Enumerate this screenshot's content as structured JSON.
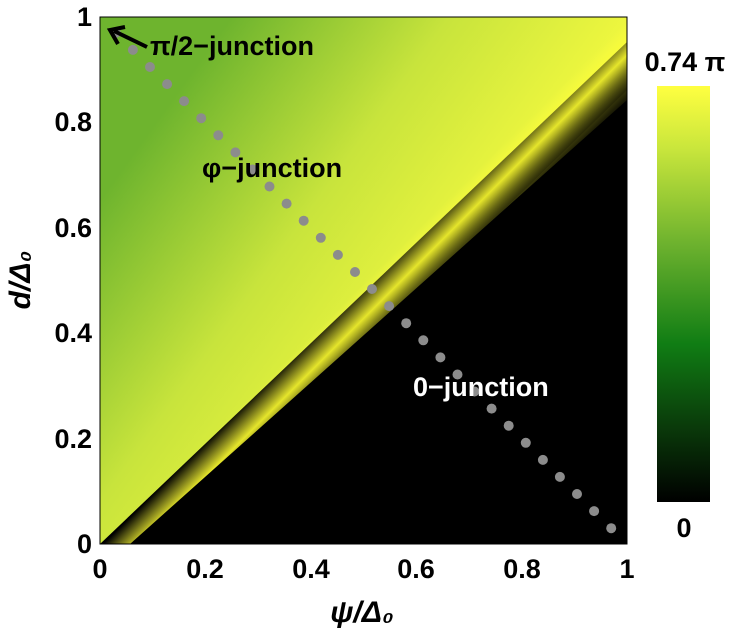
{
  "chart_data": {
    "type": "heatmap",
    "x": {
      "min": 0,
      "max": 1,
      "ticks": [
        "0",
        "0.2",
        "0.4",
        "0.6",
        "0.8",
        "1"
      ]
    },
    "y": {
      "min": 0,
      "max": 1,
      "ticks": [
        "0",
        "0.2",
        "0.4",
        "0.6",
        "0.8",
        "1"
      ]
    },
    "xlabel": "ψ/Δ₀",
    "ylabel": "d/Δ₀",
    "colorbar": {
      "min_label": "0",
      "max_label": "0.74 π",
      "min_value": 0,
      "max_value": 0.74,
      "unit": "π",
      "colors": [
        "#000000",
        "#0f7a12",
        "#5aa82a",
        "#c8e63a",
        "#ffff3c"
      ]
    },
    "boundary_line": {
      "x": [
        0,
        1
      ],
      "y": [
        0,
        1
      ]
    },
    "dotted_path": {
      "x": [
        0.03,
        0.97
      ],
      "y": [
        0.97,
        0.03
      ]
    },
    "regions": {
      "upper": "φ−junction",
      "lower": "0−junction",
      "corner": "π/2−junction"
    },
    "annotations": [
      {
        "text": "π/2−junction",
        "x": 0.1,
        "y": 0.955,
        "arrow": true
      },
      {
        "text": "φ−junction",
        "x": 0.2,
        "y": 0.71
      },
      {
        "text": "0−junction",
        "x": 0.6,
        "y": 0.3
      }
    ]
  }
}
